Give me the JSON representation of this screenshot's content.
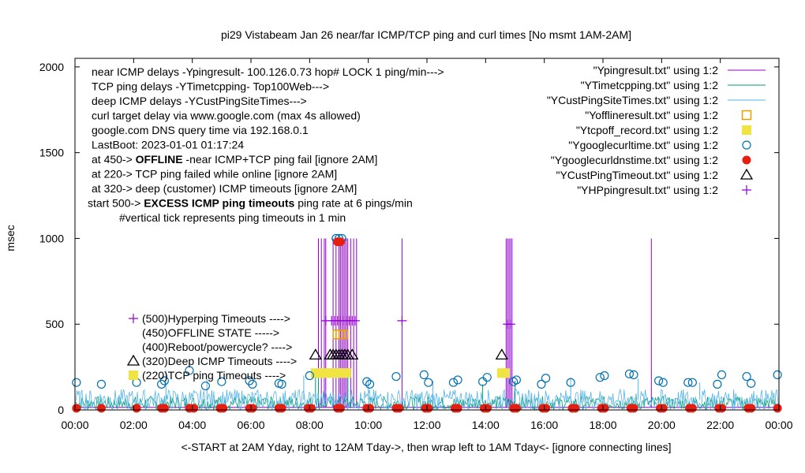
{
  "chart_data": {
    "type": "line",
    "title": "pi29 Vistabeam Jan 26  near/far ICMP/TCP ping and curl times [No msmt 1AM-2AM]",
    "ylabel": "msec",
    "xlabel": "<-START at 2AM Yday, right to 12AM Tday->, then wrap left to 1AM Tday<- [ignore connecting lines]",
    "xlim": [
      0,
      24
    ],
    "ylim": [
      0,
      2050
    ],
    "x_ticks": [
      "00:00",
      "02:00",
      "04:00",
      "06:00",
      "08:00",
      "10:00",
      "12:00",
      "14:00",
      "16:00",
      "18:00",
      "20:00",
      "22:00",
      "00:00"
    ],
    "y_ticks": [
      0,
      500,
      1000,
      1500,
      2000
    ],
    "grid": false,
    "legend_position": "top-right",
    "annotations_left": [
      "near ICMP delays -Ypingresult- 100.126.0.73 hop# LOCK 1 ping/min--->",
      "TCP ping delays -YTimetcpping- Top100Web--->",
      "deep ICMP delays -YCustPingSiteTimes--->",
      "curl target delay via www.google.com (max 4s allowed)",
      "google.com DNS query time via 192.168.0.1",
      "LastBoot: 2023-01-01 01:17:24"
    ],
    "annotations_state": [
      {
        "prefix": "at 450-> ",
        "bold": "OFFLINE",
        "suffix": " -near ICMP+TCP ping fail [ignore 2AM]"
      },
      {
        "prefix": "at 220-> TCP ping failed while online [ignore 2AM]",
        "bold": "",
        "suffix": ""
      },
      {
        "prefix": "at 320-> deep (customer) ICMP timeouts [ignore 2AM]",
        "bold": "",
        "suffix": ""
      },
      {
        "prefix": "start 500-> ",
        "bold": "EXCESS ICMP ping timeouts",
        "suffix": "  ping rate at 6 pings/min"
      },
      {
        "prefix": "#vertical tick represents ping timeouts in 1 min",
        "bold": "",
        "suffix": ""
      }
    ],
    "marker_labels": [
      {
        "y": 500,
        "text": "(500)Hyperping Timeouts ---->"
      },
      {
        "y": 450,
        "text": "(450)OFFLINE STATE ----->"
      },
      {
        "y": 400,
        "text": "(400)Reboot/powercycle? ---->"
      },
      {
        "y": 320,
        "text": "(320)Deep ICMP Timeouts ---->"
      },
      {
        "y": 220,
        "text": "(220)TCP ping Timeouts ---->"
      }
    ],
    "series": [
      {
        "name": "\"Ypingresult.txt\" using 1:2",
        "kind": "line",
        "color": "#9400d3",
        "baseline": 15,
        "spikes": [
          {
            "x": 8.3,
            "y": 1000
          },
          {
            "x": 8.4,
            "y": 1000
          },
          {
            "x": 8.5,
            "y": 1000
          },
          {
            "x": 8.55,
            "y": 1000
          },
          {
            "x": 8.8,
            "y": 1000
          },
          {
            "x": 8.9,
            "y": 1000
          },
          {
            "x": 9.0,
            "y": 1000
          },
          {
            "x": 9.05,
            "y": 1000
          },
          {
            "x": 9.1,
            "y": 1000
          },
          {
            "x": 9.15,
            "y": 1000
          },
          {
            "x": 9.2,
            "y": 1000
          },
          {
            "x": 9.25,
            "y": 1000
          },
          {
            "x": 9.3,
            "y": 1000
          },
          {
            "x": 9.4,
            "y": 1000
          },
          {
            "x": 9.5,
            "y": 1000
          },
          {
            "x": 9.6,
            "y": 1000
          },
          {
            "x": 11.15,
            "y": 1000
          },
          {
            "x": 14.7,
            "y": 1000
          },
          {
            "x": 14.75,
            "y": 1000
          },
          {
            "x": 14.8,
            "y": 1000
          },
          {
            "x": 14.85,
            "y": 1000
          },
          {
            "x": 14.9,
            "y": 1000
          },
          {
            "x": 19.65,
            "y": 1000
          }
        ]
      },
      {
        "name": "\"YTimetcpping.txt\" using 1:2",
        "kind": "noise",
        "color": "#009e73",
        "baseline": 40,
        "amp": 40,
        "spikes": [
          {
            "x": 8.2,
            "y": 230
          },
          {
            "x": 8.3,
            "y": 210
          },
          {
            "x": 9.3,
            "y": 220
          },
          {
            "x": 13.9,
            "y": 150
          },
          {
            "x": 15.0,
            "y": 170
          }
        ]
      },
      {
        "name": "\"YCustPingSiteTimes.txt\" using 1:2",
        "kind": "noise",
        "color": "#56b4e9",
        "baseline": 60,
        "amp": 60,
        "spikes": [
          {
            "x": 3.1,
            "y": 230
          },
          {
            "x": 4.5,
            "y": 180
          },
          {
            "x": 7.8,
            "y": 200
          },
          {
            "x": 10.0,
            "y": 180
          },
          {
            "x": 12.2,
            "y": 170
          },
          {
            "x": 16.9,
            "y": 190
          },
          {
            "x": 19.2,
            "y": 180
          },
          {
            "x": 21.3,
            "y": 160
          }
        ]
      },
      {
        "name": "\"Yofflineresult.txt\" using 1:2",
        "kind": "open_square",
        "color": "#e69f00",
        "points": [
          {
            "x": 8.95,
            "y": 440
          },
          {
            "x": 9.05,
            "y": 440
          },
          {
            "x": 9.15,
            "y": 440
          }
        ]
      },
      {
        "name": "\"Ytcpoff_record.txt\" using 1:2",
        "kind": "filled_square",
        "color": "#f0e442",
        "points": [
          {
            "x": 8.2,
            "y": 215
          },
          {
            "x": 8.35,
            "y": 215
          },
          {
            "x": 8.5,
            "y": 215
          },
          {
            "x": 8.65,
            "y": 215
          },
          {
            "x": 8.8,
            "y": 215
          },
          {
            "x": 8.95,
            "y": 215
          },
          {
            "x": 9.1,
            "y": 215
          },
          {
            "x": 9.25,
            "y": 215
          },
          {
            "x": 14.55,
            "y": 215
          },
          {
            "x": 14.65,
            "y": 215
          }
        ]
      },
      {
        "name": "\"Ygooglecurltime.txt\" using 1:2",
        "kind": "open_circle",
        "color": "#0072b2",
        "points": [
          {
            "x": 0.05,
            "y": 160
          },
          {
            "x": 0.9,
            "y": 150
          },
          {
            "x": 2.1,
            "y": 160
          },
          {
            "x": 2.95,
            "y": 150
          },
          {
            "x": 3.05,
            "y": 170
          },
          {
            "x": 3.9,
            "y": 230
          },
          {
            "x": 4.45,
            "y": 140
          },
          {
            "x": 5.0,
            "y": 165
          },
          {
            "x": 5.95,
            "y": 170
          },
          {
            "x": 6.05,
            "y": 150
          },
          {
            "x": 6.95,
            "y": 155
          },
          {
            "x": 7.05,
            "y": 150
          },
          {
            "x": 8.0,
            "y": 200
          },
          {
            "x": 8.9,
            "y": 1000
          },
          {
            "x": 9.0,
            "y": 1000
          },
          {
            "x": 9.1,
            "y": 1000
          },
          {
            "x": 9.95,
            "y": 165
          },
          {
            "x": 10.05,
            "y": 150
          },
          {
            "x": 10.95,
            "y": 195
          },
          {
            "x": 11.9,
            "y": 205
          },
          {
            "x": 12.05,
            "y": 160
          },
          {
            "x": 12.9,
            "y": 160
          },
          {
            "x": 13.05,
            "y": 175
          },
          {
            "x": 13.9,
            "y": 165
          },
          {
            "x": 14.05,
            "y": 190
          },
          {
            "x": 14.95,
            "y": 165
          },
          {
            "x": 15.05,
            "y": 175
          },
          {
            "x": 15.9,
            "y": 150
          },
          {
            "x": 16.05,
            "y": 185
          },
          {
            "x": 16.9,
            "y": 160
          },
          {
            "x": 17.9,
            "y": 190
          },
          {
            "x": 18.05,
            "y": 200
          },
          {
            "x": 18.9,
            "y": 210
          },
          {
            "x": 19.05,
            "y": 205
          },
          {
            "x": 19.9,
            "y": 170
          },
          {
            "x": 20.05,
            "y": 160
          },
          {
            "x": 20.9,
            "y": 160
          },
          {
            "x": 21.05,
            "y": 160
          },
          {
            "x": 21.9,
            "y": 150
          },
          {
            "x": 22.05,
            "y": 205
          },
          {
            "x": 22.9,
            "y": 195
          },
          {
            "x": 23.05,
            "y": 155
          },
          {
            "x": 23.95,
            "y": 205
          }
        ]
      },
      {
        "name": "\"Ygooglecurldnstime.txt\" using 1:2",
        "kind": "filled_circle",
        "color": "#e51e10",
        "points": [
          {
            "x": 0.05,
            "y": 10
          },
          {
            "x": 0.9,
            "y": 10
          },
          {
            "x": 2.1,
            "y": 10
          },
          {
            "x": 2.95,
            "y": 10
          },
          {
            "x": 3.05,
            "y": 10
          },
          {
            "x": 3.9,
            "y": 10
          },
          {
            "x": 4.05,
            "y": 10
          },
          {
            "x": 4.95,
            "y": 10
          },
          {
            "x": 5.05,
            "y": 10
          },
          {
            "x": 5.95,
            "y": 10
          },
          {
            "x": 6.05,
            "y": 10
          },
          {
            "x": 6.95,
            "y": 10
          },
          {
            "x": 7.05,
            "y": 10
          },
          {
            "x": 7.95,
            "y": 10
          },
          {
            "x": 8.05,
            "y": 10
          },
          {
            "x": 8.95,
            "y": 980
          },
          {
            "x": 9.05,
            "y": 980
          },
          {
            "x": 8.95,
            "y": 10
          },
          {
            "x": 9.05,
            "y": 10
          },
          {
            "x": 9.95,
            "y": 10
          },
          {
            "x": 10.05,
            "y": 10
          },
          {
            "x": 10.95,
            "y": 10
          },
          {
            "x": 11.05,
            "y": 10
          },
          {
            "x": 11.95,
            "y": 10
          },
          {
            "x": 12.05,
            "y": 10
          },
          {
            "x": 12.95,
            "y": 10
          },
          {
            "x": 13.05,
            "y": 10
          },
          {
            "x": 13.95,
            "y": 10
          },
          {
            "x": 14.05,
            "y": 10
          },
          {
            "x": 14.95,
            "y": 10
          },
          {
            "x": 15.05,
            "y": 10
          },
          {
            "x": 15.95,
            "y": 10
          },
          {
            "x": 16.05,
            "y": 10
          },
          {
            "x": 16.95,
            "y": 10
          },
          {
            "x": 17.05,
            "y": 10
          },
          {
            "x": 17.95,
            "y": 10
          },
          {
            "x": 18.05,
            "y": 10
          },
          {
            "x": 18.95,
            "y": 10
          },
          {
            "x": 19.05,
            "y": 10
          },
          {
            "x": 19.95,
            "y": 10
          },
          {
            "x": 20.05,
            "y": 10
          },
          {
            "x": 20.95,
            "y": 10
          },
          {
            "x": 21.05,
            "y": 10
          },
          {
            "x": 21.95,
            "y": 10
          },
          {
            "x": 22.05,
            "y": 10
          },
          {
            "x": 22.95,
            "y": 10
          },
          {
            "x": 23.05,
            "y": 10
          },
          {
            "x": 23.95,
            "y": 10
          }
        ]
      },
      {
        "name": "\"YCustPingTimeout.txt\" using 1:2",
        "kind": "open_triangle",
        "color": "#000000",
        "points": [
          {
            "x": 8.2,
            "y": 320
          },
          {
            "x": 8.7,
            "y": 320
          },
          {
            "x": 8.8,
            "y": 320
          },
          {
            "x": 8.9,
            "y": 320
          },
          {
            "x": 9.0,
            "y": 320
          },
          {
            "x": 9.1,
            "y": 320
          },
          {
            "x": 9.2,
            "y": 320
          },
          {
            "x": 9.3,
            "y": 320
          },
          {
            "x": 9.45,
            "y": 320
          },
          {
            "x": 14.55,
            "y": 320
          }
        ]
      },
      {
        "name": "\"YHPpingresult.txt\" using 1:2",
        "kind": "plus",
        "color": "#9400d3",
        "points": [
          {
            "x": 8.55,
            "y": 520
          },
          {
            "x": 8.75,
            "y": 520
          },
          {
            "x": 8.85,
            "y": 520
          },
          {
            "x": 8.95,
            "y": 520
          },
          {
            "x": 9.05,
            "y": 520
          },
          {
            "x": 9.15,
            "y": 520
          },
          {
            "x": 9.25,
            "y": 520
          },
          {
            "x": 9.35,
            "y": 520
          },
          {
            "x": 9.45,
            "y": 520
          },
          {
            "x": 9.55,
            "y": 520
          },
          {
            "x": 11.15,
            "y": 520
          },
          {
            "x": 14.75,
            "y": 500
          },
          {
            "x": 14.85,
            "y": 500
          }
        ]
      }
    ]
  }
}
